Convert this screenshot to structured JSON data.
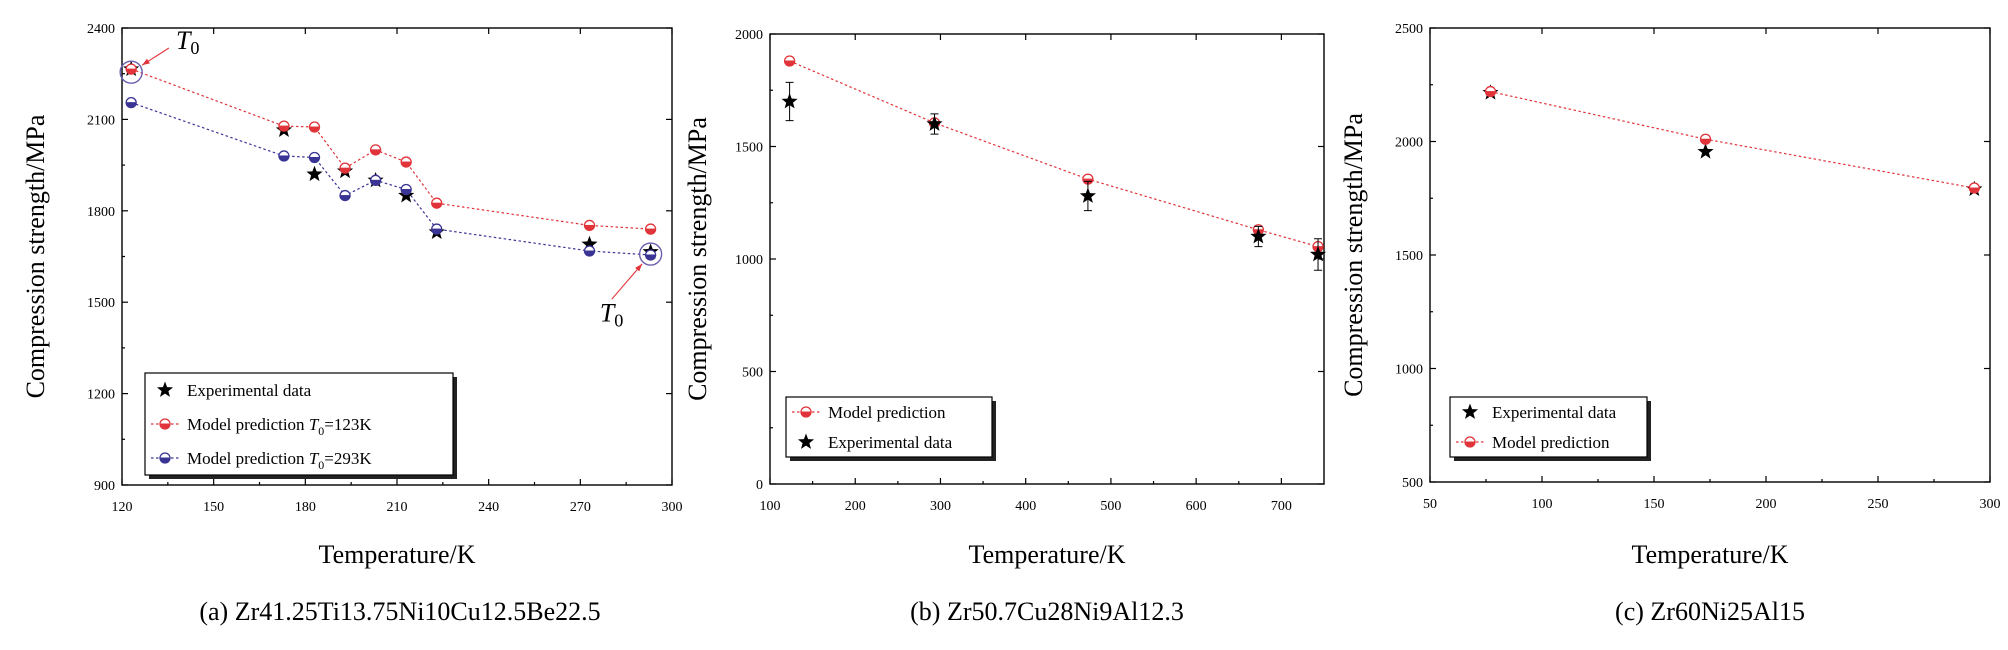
{
  "chart_data": [
    {
      "type": "line",
      "xlabel": "Temperature/K",
      "ylabel": "Compression strength/MPa",
      "caption": "(a)  Zr41.25Ti13.75Ni10Cu12.5Be22.5",
      "xlim": [
        120,
        300
      ],
      "ylim": [
        900,
        2400
      ],
      "xticks": [
        120,
        150,
        180,
        210,
        240,
        270,
        300
      ],
      "yticks": [
        900,
        1200,
        1500,
        1800,
        2100,
        2400
      ],
      "grid": false,
      "legend_position": "bottom-left",
      "series": [
        {
          "name": "Experimental data",
          "kind": "scatter",
          "marker": "star",
          "color": "#000000",
          "x": [
            123,
            173,
            183,
            193,
            203,
            213,
            223,
            273,
            293
          ],
          "y": [
            2265,
            2065,
            1920,
            1930,
            1900,
            1850,
            1730,
            1690,
            1665
          ]
        },
        {
          "name": "Model prediction T0=123K",
          "legend_prefix": "Model prediction ",
          "legend_var": "T",
          "legend_sub": "0",
          "legend_suffix": "=123K",
          "kind": "line",
          "marker": "circle",
          "color": "#e0343a",
          "x": [
            123,
            173,
            183,
            193,
            203,
            213,
            223,
            273,
            293
          ],
          "y": [
            2265,
            2078,
            2075,
            1940,
            2000,
            1960,
            1825,
            1752,
            1740
          ]
        },
        {
          "name": "Model prediction T0=293K",
          "legend_prefix": "Model prediction ",
          "legend_var": "T",
          "legend_sub": "0",
          "legend_suffix": "=293K",
          "kind": "line",
          "marker": "circle",
          "color": "#3a3494",
          "x": [
            123,
            173,
            183,
            193,
            203,
            213,
            223,
            273,
            293
          ],
          "y": [
            2155,
            1980,
            1975,
            1850,
            1900,
            1870,
            1740,
            1668,
            1655
          ]
        }
      ],
      "annotations": [
        {
          "label_var": "T",
          "label_sub": "0",
          "x": 123,
          "y": 2255,
          "label_x": 137,
          "label_y": 2345
        },
        {
          "label_var": "T",
          "label_sub": "0",
          "x": 293,
          "y": 1658,
          "label_x": 279,
          "label_y": 1495
        }
      ]
    },
    {
      "type": "line",
      "xlabel": "Temperature/K",
      "ylabel": "Compression strength/MPa",
      "caption": "(b)  Zr50.7Cu28Ni9Al12.3",
      "xlim": [
        100,
        750
      ],
      "ylim": [
        0,
        2000
      ],
      "xticks": [
        100,
        200,
        300,
        400,
        500,
        600,
        700
      ],
      "yticks": [
        0,
        500,
        1000,
        1500,
        2000
      ],
      "grid": false,
      "legend_position": "bottom-left",
      "series": [
        {
          "name": "Model prediction",
          "kind": "line",
          "marker": "circle",
          "color": "#e0343a",
          "x": [
            123,
            293,
            473,
            673,
            743
          ],
          "y": [
            1880,
            1605,
            1355,
            1130,
            1055
          ]
        },
        {
          "name": "Experimental data",
          "kind": "scatter",
          "marker": "star",
          "color": "#000000",
          "x": [
            123,
            293,
            473,
            673,
            743
          ],
          "y": [
            1700,
            1600,
            1280,
            1100,
            1020
          ],
          "error": [
            85,
            45,
            65,
            45,
            70
          ]
        }
      ]
    },
    {
      "type": "line",
      "xlabel": "Temperature/K",
      "ylabel": "Compression strength/MPa",
      "caption": "(c)  Zr60Ni25Al15",
      "xlim": [
        50,
        300
      ],
      "ylim": [
        500,
        2500
      ],
      "xticks": [
        50,
        100,
        150,
        200,
        250,
        300
      ],
      "yticks": [
        500,
        1000,
        1500,
        2000,
        2500
      ],
      "grid": false,
      "legend_position": "bottom-left",
      "series": [
        {
          "name": "Experimental data",
          "kind": "scatter",
          "marker": "star",
          "color": "#000000",
          "x": [
            77,
            173,
            293
          ],
          "y": [
            2215,
            1955,
            1790
          ]
        },
        {
          "name": "Model prediction",
          "kind": "line",
          "marker": "circle",
          "color": "#e0343a",
          "x": [
            77,
            173,
            293
          ],
          "y": [
            2220,
            2010,
            1795
          ]
        }
      ]
    }
  ]
}
